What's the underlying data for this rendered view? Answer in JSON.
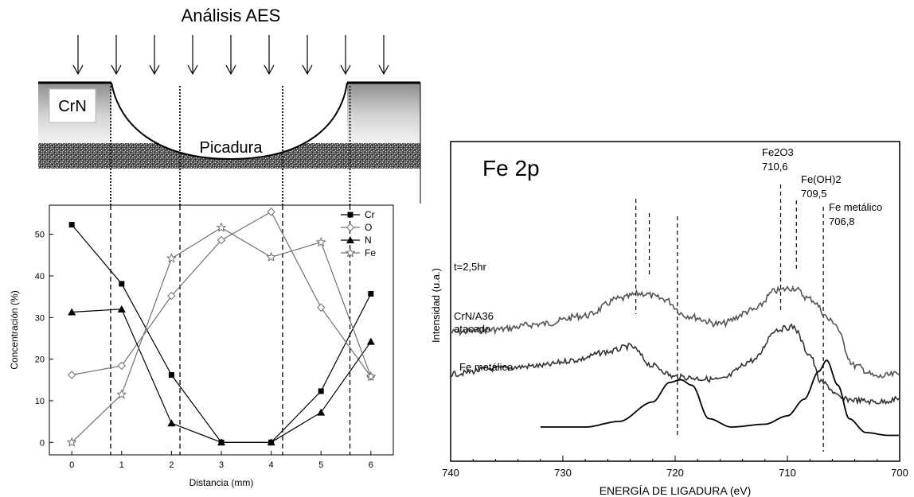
{
  "schematic": {
    "title": "Análisis AES",
    "layer_top": "CrN",
    "layer_substrate": "",
    "pit_label": "Picadura",
    "arrow_count": 9
  },
  "chart_data": [
    {
      "type": "line",
      "title": "",
      "xlabel": "Distancia (mm)",
      "ylabel": "Concentración (%)",
      "xlim": [
        -0.45,
        6.45
      ],
      "ylim": [
        -3,
        57
      ],
      "xticks": [
        0,
        1,
        2,
        3,
        4,
        5,
        6
      ],
      "yticks": [
        0,
        10,
        20,
        30,
        40,
        50
      ],
      "legend_position": "top-right",
      "vertical_markers": [
        0.78,
        2.17,
        4.23,
        5.58
      ],
      "series": [
        {
          "name": "Cr",
          "marker": "square",
          "x": [
            0,
            1,
            2,
            3,
            4,
            5,
            6
          ],
          "values": [
            52.3,
            38.1,
            16.2,
            0,
            0,
            12.3,
            35.7
          ]
        },
        {
          "name": "O",
          "marker": "diamond-open",
          "x": [
            0,
            1,
            2,
            3,
            4,
            5,
            6
          ],
          "values": [
            16.2,
            18.4,
            35.2,
            48.6,
            55.4,
            32.4,
            15.8
          ]
        },
        {
          "name": "N",
          "marker": "triangle",
          "x": [
            0,
            1,
            2,
            3,
            4,
            5,
            6
          ],
          "values": [
            31.3,
            32.0,
            4.6,
            0,
            0,
            7.2,
            24.2
          ]
        },
        {
          "name": "Fe",
          "marker": "star-open",
          "x": [
            0,
            1,
            2,
            3,
            4,
            5,
            6
          ],
          "values": [
            0,
            11.5,
            44.2,
            51.6,
            44.5,
            48.1,
            15.8
          ]
        }
      ]
    },
    {
      "type": "line",
      "title": "Fe 2p",
      "xlabel": "ENERGÍA DE LIGADURA (eV)",
      "ylabel": "Intensidad (u.a.)",
      "xlim": [
        740,
        700
      ],
      "xticks": [
        740,
        730,
        720,
        710,
        700
      ],
      "yticks": [],
      "grid": false,
      "annotations": [
        {
          "lines": [
            "Fe2O3",
            "710,6"
          ],
          "x": 710.6
        },
        {
          "lines": [
            "Fe(OH)2",
            "709,5"
          ],
          "x": 709.5
        },
        {
          "lines": [
            "Fe metálico",
            "706,8"
          ],
          "x": 706.8
        }
      ],
      "series": [
        {
          "name": "t=2,5hr",
          "x": [
            740,
            736,
            732,
            728,
            725,
            723,
            721,
            719,
            716,
            713,
            711,
            709.5,
            708,
            706,
            704,
            702,
            700
          ],
          "values": [
            48,
            47,
            45,
            42,
            36,
            34,
            36,
            42,
            45,
            40,
            33,
            32,
            36,
            44,
            60,
            64,
            63
          ]
        },
        {
          "name": "CrN/A36 atacado",
          "x": [
            740,
            736,
            732,
            729,
            726,
            724,
            722,
            720,
            716,
            713,
            711,
            709.5,
            708,
            707,
            705,
            702,
            700
          ],
          "values": [
            63,
            61,
            60,
            58,
            55,
            53,
            60,
            64,
            65,
            58,
            47,
            46,
            56,
            66,
            72,
            73,
            72
          ]
        },
        {
          "name": "Fe metálico",
          "x": [
            732,
            728,
            725,
            722,
            720.5,
            719.5,
            718.5,
            717,
            715,
            712,
            710,
            708.5,
            707.2,
            706.5,
            705.5,
            704.5,
            703,
            701,
            700
          ],
          "values": [
            82,
            82,
            80,
            73,
            66,
            65,
            67,
            79,
            82,
            81,
            78,
            72,
            62,
            58,
            67,
            79,
            84,
            85,
            85
          ]
        }
      ]
    }
  ]
}
